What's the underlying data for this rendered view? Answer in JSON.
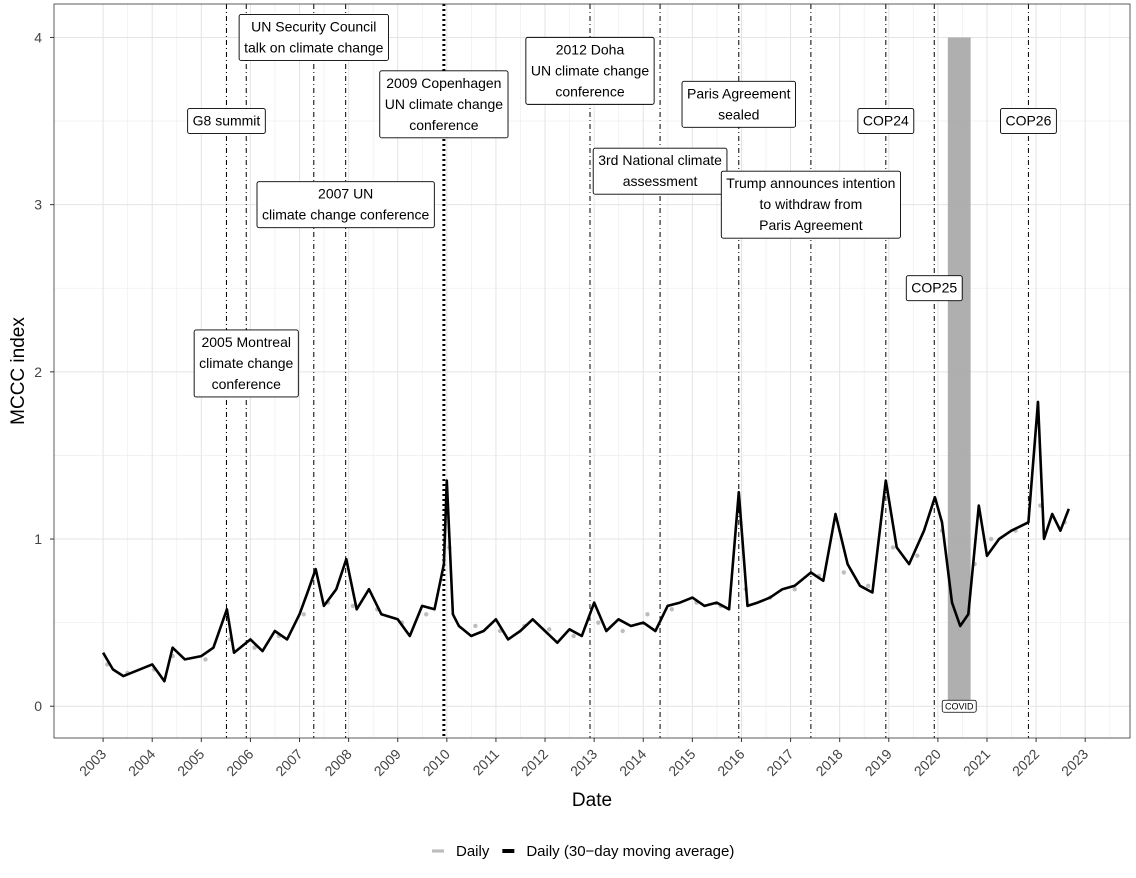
{
  "chart_data": {
    "type": "scatter",
    "xlabel": "Date",
    "ylabel": "MCCC index",
    "xlim": [
      "2002-01-01",
      "2023-11-30"
    ],
    "ylim": [
      -0.19,
      4.2
    ],
    "x_ticks": [
      "2003",
      "2004",
      "2005",
      "2006",
      "2007",
      "2008",
      "2009",
      "2010",
      "2011",
      "2012",
      "2013",
      "2014",
      "2015",
      "2016",
      "2017",
      "2018",
      "2019",
      "2020",
      "2021",
      "2022",
      "2023"
    ],
    "y_ticks": [
      "0",
      "1",
      "2",
      "3",
      "4"
    ],
    "grid": true,
    "legend": {
      "position": "bottom",
      "entries": [
        {
          "label": "Daily",
          "color": "#bdbdbd"
        },
        {
          "label": "Daily (30−day moving average)",
          "color": "#000000"
        }
      ]
    },
    "colors": {
      "daily_points": "#bdbdbd",
      "moving_average": "#000000",
      "covid_band": "#a6a6a6",
      "grid": "#e4e4e4"
    },
    "covid_band": {
      "start": "2020-03-15",
      "end": "2020-09-01",
      "label": "COVID",
      "y_top": 4.0
    },
    "series": [
      {
        "name": "Daily (30−day moving average)",
        "type": "line",
        "x": [
          "2003-01-01",
          "2003-03-15",
          "2003-06-01",
          "2003-09-01",
          "2004-01-01",
          "2004-04-01",
          "2004-06-01",
          "2004-09-01",
          "2005-01-01",
          "2005-04-01",
          "2005-07-10",
          "2005-09-01",
          "2006-01-01",
          "2006-04-01",
          "2006-07-01",
          "2006-10-01",
          "2007-01-01",
          "2007-03-01",
          "2007-05-01",
          "2007-07-01",
          "2007-10-01",
          "2007-12-15",
          "2008-03-01",
          "2008-06-01",
          "2008-09-01",
          "2009-01-01",
          "2009-04-01",
          "2009-07-01",
          "2009-10-01",
          "2009-12-10",
          "2010-01-01",
          "2010-02-15",
          "2010-04-01",
          "2010-07-01",
          "2010-10-01",
          "2011-01-01",
          "2011-04-01",
          "2011-07-01",
          "2011-10-01",
          "2012-01-01",
          "2012-04-01",
          "2012-07-01",
          "2012-10-01",
          "2013-01-01",
          "2013-04-01",
          "2013-07-01",
          "2013-10-01",
          "2014-01-01",
          "2014-04-01",
          "2014-07-01",
          "2014-10-01",
          "2015-01-01",
          "2015-04-01",
          "2015-07-01",
          "2015-10-01",
          "2015-12-12",
          "2016-02-15",
          "2016-05-01",
          "2016-08-01",
          "2016-11-01",
          "2017-02-01",
          "2017-06-01",
          "2017-09-01",
          "2017-12-01",
          "2018-03-01",
          "2018-06-01",
          "2018-09-01",
          "2018-12-10",
          "2019-03-01",
          "2019-06-01",
          "2019-09-20",
          "2019-12-10",
          "2020-02-01",
          "2020-04-15",
          "2020-06-15",
          "2020-08-15",
          "2020-11-01",
          "2021-01-01",
          "2021-04-01",
          "2021-07-01",
          "2021-11-05",
          "2022-01-15",
          "2022-03-01",
          "2022-05-01",
          "2022-07-01",
          "2022-09-01"
        ],
        "y": [
          0.32,
          0.22,
          0.18,
          0.21,
          0.25,
          0.15,
          0.35,
          0.28,
          0.3,
          0.35,
          0.58,
          0.32,
          0.4,
          0.33,
          0.45,
          0.4,
          0.55,
          0.68,
          0.82,
          0.6,
          0.7,
          0.88,
          0.58,
          0.7,
          0.55,
          0.52,
          0.42,
          0.6,
          0.58,
          0.85,
          1.35,
          0.55,
          0.48,
          0.42,
          0.45,
          0.52,
          0.4,
          0.45,
          0.52,
          0.45,
          0.38,
          0.46,
          0.42,
          0.62,
          0.45,
          0.52,
          0.48,
          0.5,
          0.45,
          0.6,
          0.62,
          0.65,
          0.6,
          0.62,
          0.58,
          1.28,
          0.6,
          0.62,
          0.65,
          0.7,
          0.72,
          0.8,
          0.75,
          1.15,
          0.85,
          0.72,
          0.68,
          1.35,
          0.95,
          0.85,
          1.05,
          1.25,
          1.1,
          0.62,
          0.48,
          0.55,
          1.2,
          0.9,
          1.0,
          1.05,
          1.1,
          1.82,
          1.0,
          1.15,
          1.05,
          1.18
        ]
      },
      {
        "name": "Daily",
        "type": "scatter",
        "x": [
          "2003-02-01",
          "2003-07-01",
          "2004-01-15",
          "2004-06-01",
          "2005-02-01",
          "2005-08-01",
          "2006-02-01",
          "2006-08-01",
          "2007-02-01",
          "2007-08-01",
          "2008-02-01",
          "2008-08-01",
          "2009-02-01",
          "2009-08-01",
          "2010-01-20",
          "2010-08-01",
          "2011-02-01",
          "2011-08-01",
          "2012-02-01",
          "2012-08-01",
          "2013-02-01",
          "2013-08-01",
          "2014-02-01",
          "2014-08-01",
          "2015-02-01",
          "2015-08-01",
          "2016-02-01",
          "2016-08-01",
          "2017-02-01",
          "2017-08-01",
          "2018-02-01",
          "2018-08-01",
          "2019-02-01",
          "2019-08-01",
          "2020-02-01",
          "2020-10-01",
          "2021-02-01",
          "2021-08-01",
          "2022-02-01",
          "2022-08-01"
        ],
        "y": [
          0.25,
          0.2,
          0.22,
          0.3,
          0.28,
          0.4,
          0.35,
          0.42,
          0.55,
          0.62,
          0.6,
          0.58,
          0.5,
          0.55,
          0.95,
          0.48,
          0.45,
          0.48,
          0.46,
          0.42,
          0.5,
          0.45,
          0.55,
          0.58,
          0.62,
          0.6,
          0.7,
          0.65,
          0.7,
          0.78,
          0.8,
          0.72,
          0.95,
          0.9,
          1.05,
          0.85,
          1.0,
          1.05,
          1.2,
          1.1
        ]
      }
    ],
    "event_lines": [
      {
        "date": "2005-07-07",
        "label": "G8 summit",
        "style": "dotdash",
        "label_y": 3.5
      },
      {
        "date": "2005-12-01",
        "label": "2005 Montreal\nclimate change\nconference",
        "style": "dotdash",
        "label_y": 2.05
      },
      {
        "date": "2007-04-17",
        "label": "UN Security Council\ntalk on climate change",
        "style": "dotdash",
        "label_y": 4.0
      },
      {
        "date": "2007-12-10",
        "label": "2007 UN\nclimate change conference",
        "style": "dotdash",
        "label_y": 3.0
      },
      {
        "date": "2009-12-10",
        "label": "2009 Copenhagen\nUN climate change\nconference",
        "style": "dotted",
        "label_y": 3.6
      },
      {
        "date": "2012-12-01",
        "label": "2012 Doha\nUN climate change\nconference",
        "style": "dotdash",
        "label_y": 3.8
      },
      {
        "date": "2014-05-06",
        "label": "3rd National climate\nassessment",
        "style": "dotdash",
        "label_y": 3.2
      },
      {
        "date": "2015-12-12",
        "label": "Paris Agreement\nsealed",
        "style": "dotdash",
        "label_y": 3.6
      },
      {
        "date": "2017-06-01",
        "label": "Trump announces intention\nto withdraw from\nParis Agreement",
        "style": "dotdash",
        "label_y": 3.0
      },
      {
        "date": "2018-12-10",
        "label": "COP24",
        "style": "dotdash",
        "label_y": 3.5
      },
      {
        "date": "2019-12-05",
        "label": "COP25",
        "style": "dotdash",
        "label_y": 2.5
      },
      {
        "date": "2021-11-05",
        "label": "COP26",
        "style": "dotdash",
        "label_y": 3.5
      }
    ]
  }
}
